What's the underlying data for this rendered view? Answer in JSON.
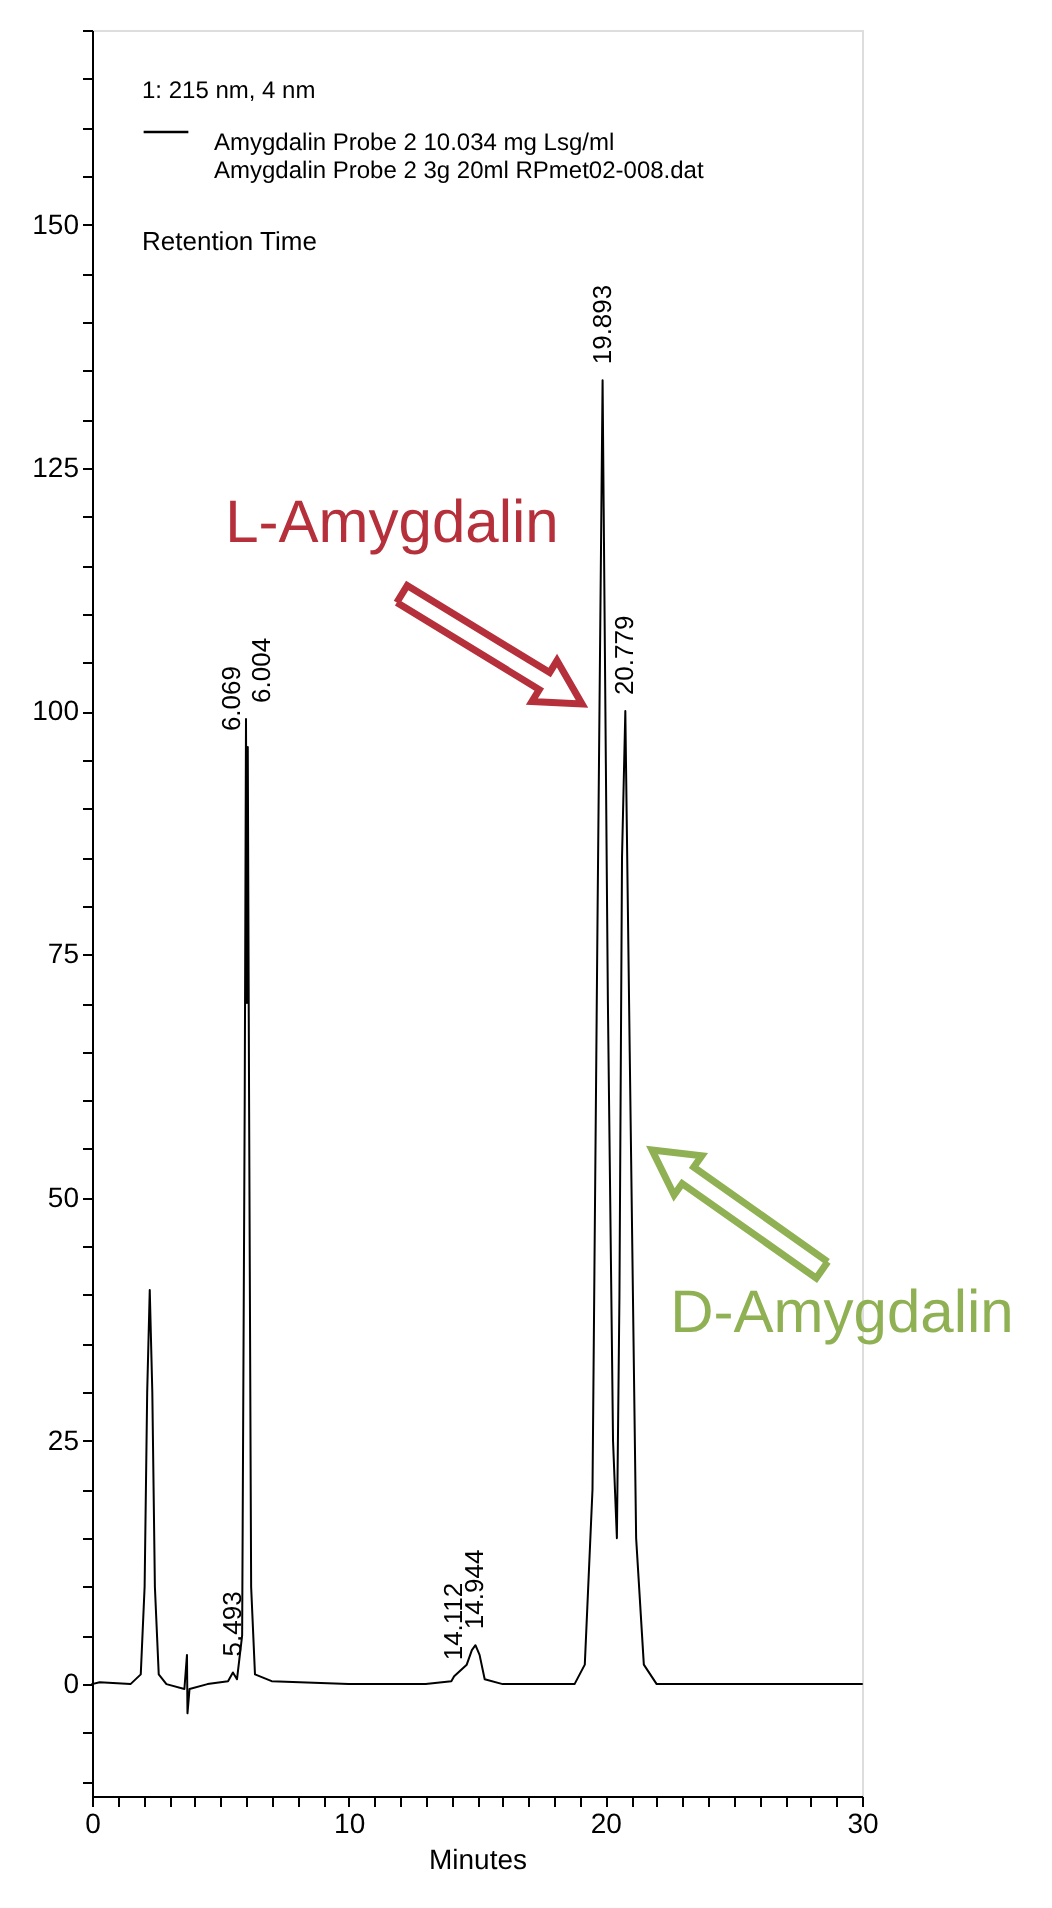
{
  "chart_data": {
    "type": "line",
    "legend_title": "1: 215 nm, 4 nm",
    "xlabel": "Minutes",
    "x": [
      0,
      0.3,
      1.5,
      1.9,
      2.05,
      2.15,
      2.25,
      2.35,
      2.45,
      2.6,
      2.9,
      3.6,
      3.7,
      3.72,
      3.8,
      4.5,
      5.3,
      5.49,
      5.65,
      5.85,
      5.95,
      6.0,
      6.035,
      6.069,
      6.12,
      6.2,
      6.35,
      7,
      10,
      13,
      14.0,
      14.11,
      14.6,
      14.8,
      14.94,
      15.1,
      15.3,
      16,
      18.8,
      19.2,
      19.5,
      19.7,
      19.893,
      20.1,
      20.3,
      20.45,
      20.55,
      20.65,
      20.779,
      20.95,
      21.2,
      21.5,
      22,
      25,
      30
    ],
    "series": [
      {
        "name": "Amygdalin  Probe 2  10.034 mg Lsg/ml\nAmygdalin Probe 2  3g 20ml RPmet02-008.dat",
        "color": "#000000",
        "values": [
          0,
          0.2,
          0,
          1,
          10,
          30,
          40.5,
          30,
          10,
          1,
          0,
          -0.5,
          3,
          -3,
          -0.5,
          0,
          0.3,
          1.2,
          0.5,
          5,
          60,
          99.2,
          70,
          96.3,
          60,
          10,
          1,
          0.3,
          0,
          0,
          0.3,
          0.8,
          2,
          3.5,
          4,
          3,
          0.5,
          0,
          0,
          2,
          20,
          80,
          134,
          70,
          25,
          15,
          40,
          85,
          100,
          65,
          15,
          2,
          0,
          0,
          0
        ]
      }
    ],
    "xlim": [
      0,
      30
    ],
    "xticks": [
      0,
      {
        "value": 1,
        "label": null
      },
      {
        "value": 2,
        "label": null
      },
      {
        "value": 3,
        "label": null
      },
      {
        "value": 4,
        "label": null
      },
      {
        "value": 5,
        "label": null
      },
      {
        "value": 6,
        "label": null
      },
      {
        "value": 7,
        "label": null
      },
      {
        "value": 8,
        "label": null
      },
      {
        "value": 9,
        "label": null
      },
      10,
      {
        "value": 11,
        "label": null
      },
      {
        "value": 12,
        "label": null
      },
      {
        "value": 13,
        "label": null
      },
      {
        "value": 14,
        "label": null
      },
      {
        "value": 15,
        "label": null
      },
      {
        "value": 16,
        "label": null
      },
      {
        "value": 17,
        "label": null
      },
      {
        "value": 18,
        "label": null
      },
      {
        "value": 19,
        "label": null
      },
      20,
      {
        "value": 21,
        "label": null
      },
      {
        "value": 22,
        "label": null
      },
      {
        "value": 23,
        "label": null
      },
      {
        "value": 24,
        "label": null
      },
      {
        "value": 25,
        "label": null
      },
      {
        "value": 26,
        "label": null
      },
      {
        "value": 27,
        "label": null
      },
      {
        "value": 28,
        "label": null
      },
      {
        "value": 29,
        "label": null
      },
      30
    ],
    "ylim": [
      -11.5,
      170
    ],
    "yticks": [
      {
        "value": -10,
        "label": null
      },
      {
        "value": -5,
        "label": null
      },
      0,
      {
        "value": 5,
        "label": null
      },
      {
        "value": 10,
        "label": null
      },
      {
        "value": 15,
        "label": null
      },
      {
        "value": 20,
        "label": null
      },
      25,
      {
        "value": 30,
        "label": null
      },
      {
        "value": 35,
        "label": null
      },
      {
        "value": 40,
        "label": null
      },
      {
        "value": 45,
        "label": null
      },
      50,
      {
        "value": 55,
        "label": null
      },
      {
        "value": 60,
        "label": null
      },
      {
        "value": 65,
        "label": null
      },
      {
        "value": 70,
        "label": null
      },
      75,
      {
        "value": 80,
        "label": null
      },
      {
        "value": 85,
        "label": null
      },
      {
        "value": 90,
        "label": null
      },
      {
        "value": 95,
        "label": null
      },
      100,
      {
        "value": 105,
        "label": null
      },
      {
        "value": 110,
        "label": null
      },
      {
        "value": 115,
        "label": null
      },
      {
        "value": 120,
        "label": null
      },
      125,
      {
        "value": 130,
        "label": null
      },
      {
        "value": 135,
        "label": null
      },
      {
        "value": 140,
        "label": null
      },
      {
        "value": 145,
        "label": null
      },
      150,
      {
        "value": 155,
        "label": null
      },
      {
        "value": 160,
        "label": null
      },
      {
        "value": 165,
        "label": null
      },
      {
        "value": 170,
        "label": null
      }
    ],
    "grid": false,
    "legend": "top left",
    "marker": "none",
    "line_style": "solid",
    "annotations": [
      "Retention Time",
      "L-Amygdalin",
      "D-Amygdalin",
      {
        "text": "5.493",
        "x": 5.49,
        "y": 1.2
      },
      {
        "text": "6.004",
        "x": 6.0,
        "y": 99.2
      },
      {
        "text": "6.069",
        "x": 6.069,
        "y": 96.3
      },
      {
        "text": "14.112",
        "x": 14.11,
        "y": 0.8
      },
      {
        "text": "14.944",
        "x": 14.94,
        "y": 4
      },
      {
        "text": "19.893",
        "x": 19.893,
        "y": 134
      },
      {
        "text": "20.779",
        "x": 20.779,
        "y": 100
      }
    ]
  }
}
